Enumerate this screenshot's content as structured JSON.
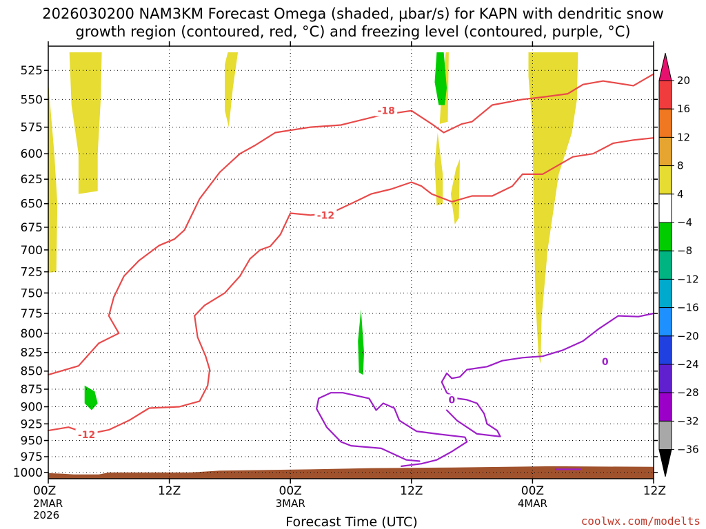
{
  "chart_data": {
    "type": "heatmap",
    "title": {
      "line1": "2026030200 NAM3KM Forecast Omega (shaded, μbar/s) for KAPN with dendritic snow",
      "line2": "growth region (contoured, red, °C) and freezing level (contoured, purple, °C)"
    },
    "xlabel": "Forecast Time (UTC)",
    "credit": "coolwx.com/modelts",
    "x_ticks": [
      {
        "hour": 0,
        "label": "00Z",
        "sub1": "2MAR",
        "sub2": "2026"
      },
      {
        "hour": 12,
        "label": "12Z",
        "sub1": "",
        "sub2": ""
      },
      {
        "hour": 24,
        "label": "00Z",
        "sub1": "3MAR",
        "sub2": ""
      },
      {
        "hour": 36,
        "label": "12Z",
        "sub1": "",
        "sub2": ""
      },
      {
        "hour": 48,
        "label": "00Z",
        "sub1": "4MAR",
        "sub2": ""
      },
      {
        "hour": 60,
        "label": "12Z",
        "sub1": "",
        "sub2": ""
      }
    ],
    "xlim": [
      0,
      60
    ],
    "y_ticks": [
      525,
      550,
      575,
      600,
      625,
      650,
      675,
      700,
      725,
      750,
      775,
      800,
      825,
      850,
      875,
      900,
      925,
      950,
      975,
      1000
    ],
    "ylim": [
      1010,
      505
    ],
    "y_scale": "log-pressure",
    "grid": "dotted",
    "colorbar": {
      "levels": [
        20,
        16,
        12,
        8,
        4,
        -4,
        -8,
        -12,
        -16,
        -20,
        -24,
        -28,
        -32,
        -36
      ],
      "colors": [
        "#e8106e",
        "#f03c3c",
        "#f07820",
        "#e6a530",
        "#e6dc32",
        "#ffffff",
        "#00cc00",
        "#00b482",
        "#00aacc",
        "#1e90ff",
        "#2040e0",
        "#6020d0",
        "#9b00c8",
        "#a8a8a8",
        "#000000"
      ]
    },
    "omega_shaded_regions": [
      {
        "value_range": [
          4,
          8
        ],
        "color": "#e6dc32",
        "points": [
          [
            0,
            535
          ],
          [
            0.6,
            600
          ],
          [
            0.9,
            650
          ],
          [
            0.8,
            725
          ],
          [
            0,
            726
          ]
        ]
      },
      {
        "value_range": [
          4,
          8
        ],
        "color": "#e6dc32",
        "points": [
          [
            2.1,
            510
          ],
          [
            5.3,
            510
          ],
          [
            5.2,
            550
          ],
          [
            4.9,
            600
          ],
          [
            4.9,
            637
          ],
          [
            3.0,
            640
          ],
          [
            3.0,
            600
          ],
          [
            2.3,
            555
          ]
        ]
      },
      {
        "value_range": [
          4,
          8
        ],
        "color": "#e6dc32",
        "points": [
          [
            17.8,
            510
          ],
          [
            18.8,
            510
          ],
          [
            18.3,
            540
          ],
          [
            17.9,
            575
          ],
          [
            17.5,
            560
          ],
          [
            17.5,
            520
          ]
        ]
      },
      {
        "value_range": [
          4,
          8
        ],
        "color": "#e6dc32",
        "points": [
          [
            39.4,
            510
          ],
          [
            39.7,
            510
          ],
          [
            39.6,
            570
          ],
          [
            38.8,
            572
          ],
          [
            39.0,
            540
          ]
        ]
      },
      {
        "value_range": [
          4,
          8
        ],
        "color": "#e6dc32",
        "points": [
          [
            38.6,
            580
          ],
          [
            39.1,
            620
          ],
          [
            39.1,
            650
          ],
          [
            38.5,
            652
          ],
          [
            38.3,
            610
          ]
        ]
      },
      {
        "value_range": [
          4,
          8
        ],
        "color": "#e6dc32",
        "points": [
          [
            40.8,
            605
          ],
          [
            40.7,
            665
          ],
          [
            40.3,
            672
          ],
          [
            39.9,
            640
          ],
          [
            40.4,
            615
          ]
        ]
      },
      {
        "value_range": [
          4,
          8
        ],
        "color": "#e6dc32",
        "points": [
          [
            47.6,
            510
          ],
          [
            52.5,
            510
          ],
          [
            52.4,
            550
          ],
          [
            51.9,
            580
          ],
          [
            50.6,
            620
          ],
          [
            49.5,
            700
          ],
          [
            48.9,
            780
          ],
          [
            48.8,
            840
          ],
          [
            48.6,
            830
          ],
          [
            48.3,
            760
          ],
          [
            48.1,
            650
          ],
          [
            48.0,
            575
          ],
          [
            47.6,
            530
          ]
        ]
      },
      {
        "value_range": [
          -8,
          -4
        ],
        "color": "#00cc00",
        "points": [
          [
            38.5,
            510
          ],
          [
            39.2,
            510
          ],
          [
            39.5,
            540
          ],
          [
            39.3,
            555
          ],
          [
            38.7,
            555
          ],
          [
            38.3,
            535
          ]
        ]
      },
      {
        "value_range": [
          -8,
          -4
        ],
        "color": "#00cc00",
        "points": [
          [
            31.0,
            770
          ],
          [
            31.3,
            825
          ],
          [
            31.2,
            855
          ],
          [
            30.8,
            852
          ],
          [
            30.7,
            810
          ]
        ]
      },
      {
        "value_range": [
          -8,
          -4
        ],
        "color": "#00cc00",
        "points": [
          [
            3.6,
            870
          ],
          [
            4.6,
            878
          ],
          [
            4.9,
            895
          ],
          [
            4.3,
            905
          ],
          [
            3.6,
            895
          ]
        ]
      }
    ],
    "dendritic_contours": [
      {
        "label": "-18",
        "color": "#e84a4a",
        "label_at": [
          33.5,
          560
        ],
        "points": [
          [
            22.5,
            580
          ],
          [
            26,
            575
          ],
          [
            29,
            573
          ],
          [
            33,
            564
          ],
          [
            36,
            560
          ],
          [
            38,
            572
          ],
          [
            39.2,
            580
          ],
          [
            41,
            572
          ],
          [
            42,
            570
          ],
          [
            44,
            555
          ],
          [
            47,
            550
          ],
          [
            49,
            548
          ],
          [
            51.5,
            545
          ],
          [
            53,
            537
          ],
          [
            55,
            534
          ],
          [
            58,
            538
          ],
          [
            60,
            528
          ]
        ]
      },
      {
        "label": "-12",
        "color": "#e84a4a",
        "label_at": [
          27.5,
          662
        ],
        "points": [
          [
            0,
            855
          ],
          [
            3,
            843
          ],
          [
            5,
            813
          ],
          [
            7,
            800
          ],
          [
            6,
            778
          ],
          [
            6.5,
            755
          ],
          [
            7.5,
            730
          ],
          [
            9,
            712
          ],
          [
            11,
            695
          ],
          [
            12.5,
            688
          ],
          [
            13.5,
            678
          ],
          [
            15,
            645
          ],
          [
            17,
            618
          ],
          [
            19,
            600
          ],
          [
            20.5,
            592
          ],
          [
            22.5,
            580
          ]
        ]
      },
      {
        "label": "-12",
        "color": "#e84a4a",
        "label_at": [
          3.8,
          941
        ],
        "points": [
          [
            0,
            935
          ],
          [
            2,
            930
          ],
          [
            4,
            940
          ],
          [
            6,
            934
          ],
          [
            8,
            920
          ],
          [
            10,
            902
          ],
          [
            13,
            900
          ],
          [
            15,
            892
          ],
          [
            15.8,
            870
          ],
          [
            16.0,
            848
          ],
          [
            15.6,
            830
          ],
          [
            14.8,
            805
          ],
          [
            14.5,
            778
          ],
          [
            15.5,
            765
          ],
          [
            17.5,
            750
          ],
          [
            19,
            730
          ],
          [
            20,
            710
          ],
          [
            21,
            700
          ],
          [
            22,
            696
          ],
          [
            23,
            683
          ],
          [
            24,
            660
          ],
          [
            26,
            662
          ],
          [
            28,
            660
          ],
          [
            30,
            650
          ],
          [
            32,
            640
          ],
          [
            34,
            635
          ],
          [
            36,
            628
          ],
          [
            37,
            632
          ],
          [
            38,
            640
          ],
          [
            40,
            648
          ],
          [
            42,
            642
          ],
          [
            44,
            642
          ],
          [
            46,
            632
          ],
          [
            47,
            620
          ],
          [
            49,
            620
          ],
          [
            52,
            603
          ],
          [
            54,
            600
          ],
          [
            56,
            590
          ],
          [
            58,
            587
          ],
          [
            60,
            585
          ]
        ]
      }
    ],
    "freezing_contours": [
      {
        "label": "0",
        "color": "#9d1fc8",
        "label_at": [
          55.2,
          837
        ],
        "points": [
          [
            35,
            990
          ],
          [
            37,
            986
          ],
          [
            38.5,
            980
          ],
          [
            40,
            967
          ],
          [
            41.5,
            952
          ],
          [
            41.3,
            945
          ],
          [
            38.5,
            940
          ],
          [
            36.5,
            936
          ],
          [
            34.8,
            920
          ],
          [
            34.3,
            902
          ],
          [
            33.2,
            895
          ],
          [
            32.5,
            905
          ],
          [
            31.8,
            888
          ],
          [
            29.2,
            880
          ],
          [
            28.0,
            880
          ],
          [
            26.8,
            888
          ],
          [
            26.6,
            903
          ],
          [
            27.6,
            930
          ],
          [
            29,
            952
          ],
          [
            30,
            958
          ],
          [
            33,
            962
          ],
          [
            35.5,
            980
          ],
          [
            36.8,
            982
          ]
        ]
      },
      {
        "label": "0",
        "color": "#9d1fc8",
        "label_at": [
          40.0,
          890
        ],
        "points": [
          [
            39.5,
            905
          ],
          [
            40.5,
            920
          ],
          [
            42.5,
            940
          ],
          [
            44.8,
            944
          ],
          [
            44.5,
            935
          ],
          [
            43.5,
            925
          ],
          [
            43.2,
            910
          ],
          [
            42.5,
            895
          ],
          [
            41.5,
            890
          ],
          [
            40.5,
            888
          ],
          [
            39.5,
            880
          ],
          [
            39.0,
            865
          ],
          [
            39.5,
            853
          ],
          [
            40.0,
            860
          ],
          [
            40.8,
            858
          ],
          [
            41.5,
            848
          ],
          [
            43.5,
            844
          ],
          [
            45.0,
            836
          ],
          [
            47.0,
            832
          ],
          [
            49.0,
            830
          ],
          [
            51.0,
            822
          ],
          [
            53.0,
            810
          ],
          [
            54.5,
            795
          ],
          [
            56.5,
            778
          ],
          [
            58.5,
            779
          ],
          [
            60,
            775
          ]
        ]
      },
      {
        "label": "",
        "color": "#9d1fc8",
        "label_at": null,
        "points": [
          [
            50.3,
            995
          ],
          [
            52.8,
            995
          ]
        ]
      }
    ],
    "terrain_surface": {
      "color": "#a0522d",
      "points": [
        [
          0,
          1001
        ],
        [
          1.5,
          1002
        ],
        [
          2.5,
          1003
        ],
        [
          5,
          1003
        ],
        [
          6,
          1000
        ],
        [
          14,
          1000
        ],
        [
          17,
          997
        ],
        [
          26,
          995
        ],
        [
          32,
          993
        ],
        [
          40,
          992
        ],
        [
          50,
          990
        ],
        [
          60,
          991
        ]
      ]
    }
  }
}
